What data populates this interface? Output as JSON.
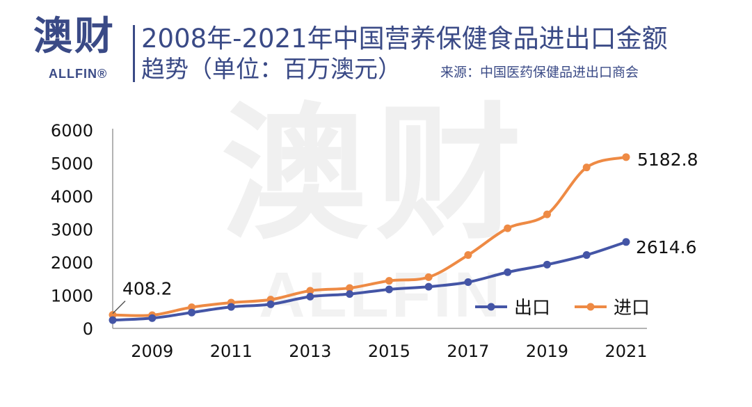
{
  "header": {
    "logo_mark": "澳财",
    "logo_sub": "ALLFIN®",
    "title_line1": "2008年-2021年中国营养保健食品进出口金额",
    "title_line2": "趋势（单位：百万澳元）",
    "source": "来源：中国医药保健品进出口商会"
  },
  "watermark": {
    "big": "澳财",
    "small": "ALLFIN"
  },
  "colors": {
    "brand": "#3a4a86",
    "export": "#4455a6",
    "import": "#ee8a44"
  },
  "chart_data": {
    "type": "line",
    "x": [
      2008,
      2009,
      2010,
      2011,
      2012,
      2013,
      2014,
      2015,
      2016,
      2017,
      2018,
      2019,
      2020,
      2021
    ],
    "x_tick_labels": [
      "2009",
      "2011",
      "2013",
      "2015",
      "2017",
      "2019",
      "2021"
    ],
    "x_tick_values": [
      2009,
      2011,
      2013,
      2015,
      2017,
      2019,
      2021
    ],
    "y_tick_labels": [
      "6000",
      "5000",
      "4000",
      "3000",
      "2000",
      "1000",
      "0"
    ],
    "y_tick_values": [
      6000,
      5000,
      4000,
      3000,
      2000,
      1000,
      0
    ],
    "ylim": [
      0,
      6000
    ],
    "xlim": [
      2008,
      2021
    ],
    "grid": false,
    "legend_position": "lower-right",
    "series": [
      {
        "name": "出口",
        "color": "#4455a6",
        "values": [
          250,
          310,
          480,
          650,
          730,
          960,
          1040,
          1180,
          1260,
          1400,
          1700,
          1930,
          2220,
          2614.6
        ]
      },
      {
        "name": "进口",
        "color": "#ee8a44",
        "values": [
          408.2,
          400,
          640,
          780,
          870,
          1140,
          1220,
          1440,
          1550,
          2220,
          3030,
          3450,
          4870,
          5182.8
        ]
      }
    ],
    "annotations": [
      {
        "text": "408.2"
      },
      {
        "text": "2614.6"
      },
      {
        "text": "5182.8"
      }
    ]
  }
}
